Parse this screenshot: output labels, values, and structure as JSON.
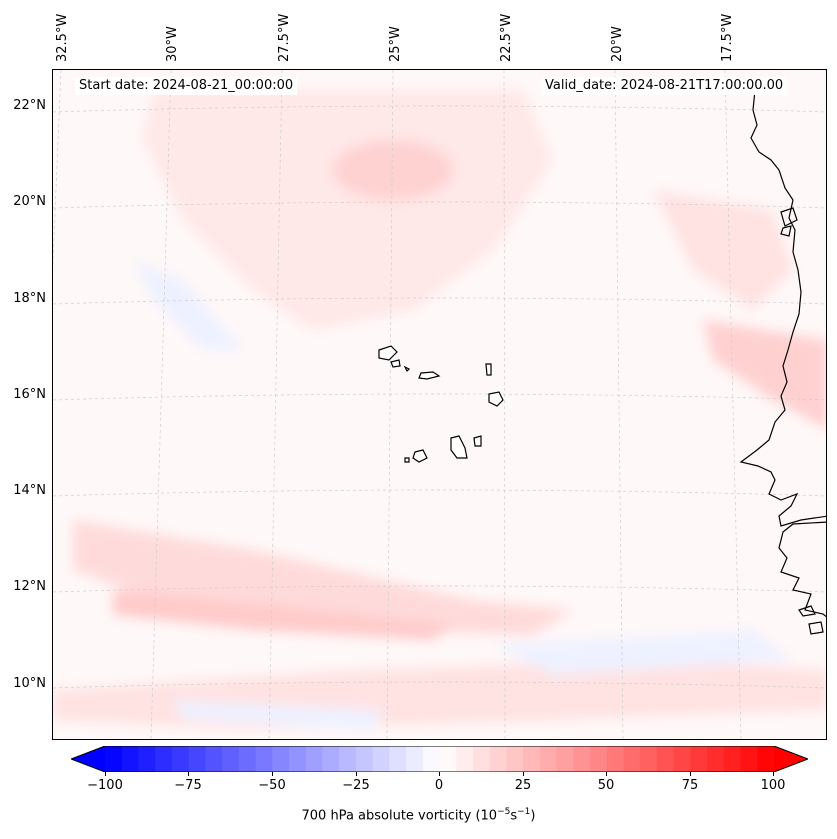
{
  "header": {
    "start_date": "Start date: 2024-08-21_00:00:00",
    "valid_date": "Valid_date: 2024-08-21T17:00:00.00"
  },
  "longitude_labels": [
    "32.5°W",
    "30°W",
    "27.5°W",
    "25°W",
    "22.5°W",
    "20°W",
    "17.5°W"
  ],
  "latitude_labels": [
    "22°N",
    "20°N",
    "18°N",
    "16°N",
    "14°N",
    "12°N",
    "10°N"
  ],
  "colorbar": {
    "label_main": "700 hPa absolute vorticity (10",
    "label_exp1": "−5",
    "label_mid": "s",
    "label_exp2": "−1",
    "label_end": ")",
    "ticks": [
      "−100",
      "−75",
      "−50",
      "−25",
      "0",
      "25",
      "50",
      "75",
      "100"
    ],
    "tick_values": [
      -100,
      -75,
      -50,
      -25,
      0,
      25,
      50,
      75,
      100
    ],
    "range": [
      -100,
      100
    ],
    "color_low": "#0000ff",
    "color_mid": "#ffffff",
    "color_high": "#ff0000"
  },
  "colors": {
    "coastline": "#000000",
    "gridline": "#cccccc",
    "background_field": "#fff8f8",
    "positive_patch": "#ffdcdc",
    "strong_positive_patch": "#ffc8c8",
    "negative_patch": "#eef2ff"
  }
}
